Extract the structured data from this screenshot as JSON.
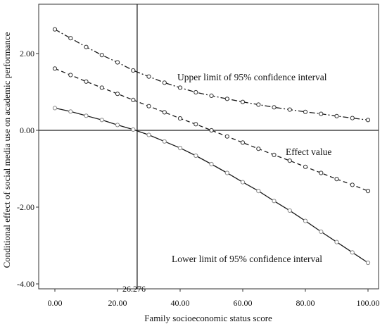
{
  "chart_data": {
    "type": "line",
    "xlabel": "Family socioeconomic status score",
    "ylabel": "Conditional effect of social media use on academic performance",
    "xlim": [
      0,
      100
    ],
    "ylim": [
      -4.2,
      3.0
    ],
    "x_ticks": [
      0,
      20,
      40,
      60,
      80,
      100
    ],
    "x_tick_labels": [
      "0.00",
      "20.00",
      "40.00",
      "60.00",
      "80.00",
      "100.00"
    ],
    "y_ticks": [
      -4,
      -2,
      0,
      2
    ],
    "y_tick_labels": [
      "-4.00",
      "-2.00",
      "0.00",
      "2.00"
    ],
    "grid": false,
    "legend": "none",
    "reference_lines": {
      "horizontal_y": 0,
      "vertical_x": 26.276,
      "vertical_label": "26.276"
    },
    "x": [
      0,
      5,
      10,
      15,
      20,
      25,
      30,
      35,
      40,
      45,
      50,
      55,
      60,
      65,
      70,
      75,
      80,
      85,
      90,
      95,
      100
    ],
    "series": [
      {
        "key": "upper",
        "label": "Upper limit of 95% confidence interval",
        "style": "dashdot",
        "values": [
          2.63,
          2.4,
          2.17,
          1.96,
          1.77,
          1.56,
          1.4,
          1.24,
          1.11,
          0.99,
          0.9,
          0.82,
          0.74,
          0.67,
          0.6,
          0.54,
          0.48,
          0.43,
          0.37,
          0.32,
          0.27
        ]
      },
      {
        "key": "effect",
        "label": "Effect value",
        "style": "dashed",
        "values": [
          1.61,
          1.44,
          1.27,
          1.11,
          0.95,
          0.79,
          0.63,
          0.47,
          0.31,
          0.16,
          0.0,
          -0.16,
          -0.32,
          -0.48,
          -0.64,
          -0.79,
          -0.95,
          -1.11,
          -1.27,
          -1.42,
          -1.58
        ]
      },
      {
        "key": "lower",
        "label": "Lower limit of 95% confidence interval",
        "style": "solid",
        "values": [
          0.58,
          0.49,
          0.38,
          0.27,
          0.14,
          0.02,
          -0.12,
          -0.29,
          -0.46,
          -0.66,
          -0.88,
          -1.11,
          -1.35,
          -1.58,
          -1.84,
          -2.09,
          -2.36,
          -2.64,
          -2.91,
          -3.18,
          -3.45
        ]
      }
    ]
  }
}
